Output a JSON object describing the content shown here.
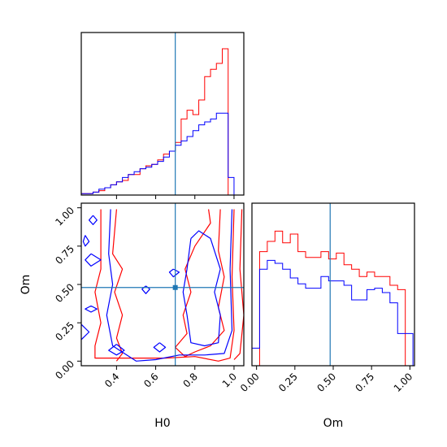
{
  "colors": {
    "red": "#ff0000",
    "blue": "#0000ff",
    "truth": "#1f77b4",
    "axes": "#000000"
  },
  "chart_data": {
    "type": "corner",
    "parameters": [
      "H0",
      "Om"
    ],
    "truths": {
      "H0": 0.7,
      "Om": 0.48
    },
    "ranges": {
      "H0": [
        0.22,
        1.05
      ],
      "Om": [
        -0.03,
        1.03
      ]
    },
    "hist_H0": {
      "type": "step-histogram",
      "x": [
        0.22,
        0.25,
        0.28,
        0.31,
        0.34,
        0.37,
        0.4,
        0.43,
        0.46,
        0.49,
        0.52,
        0.55,
        0.58,
        0.61,
        0.64,
        0.67,
        0.7,
        0.73,
        0.76,
        0.79,
        0.82,
        0.85,
        0.88,
        0.91,
        0.94,
        0.97,
        1.0
      ],
      "series": [
        {
          "color": "red",
          "values": [
            0.01,
            0.01,
            0.02,
            0.03,
            0.05,
            0.07,
            0.09,
            0.1,
            0.14,
            0.14,
            0.18,
            0.2,
            0.21,
            0.24,
            0.28,
            0.3,
            0.36,
            0.52,
            0.58,
            0.55,
            0.65,
            0.81,
            0.86,
            0.9,
            1.0,
            0.0
          ]
        },
        {
          "color": "blue",
          "values": [
            0.01,
            0.01,
            0.02,
            0.04,
            0.05,
            0.07,
            0.09,
            0.12,
            0.14,
            0.16,
            0.18,
            0.19,
            0.21,
            0.23,
            0.26,
            0.3,
            0.34,
            0.37,
            0.4,
            0.44,
            0.48,
            0.5,
            0.52,
            0.56,
            0.56,
            0.12
          ]
        }
      ]
    },
    "hist_Om": {
      "type": "step-histogram",
      "x": [
        -0.03,
        0.02,
        0.07,
        0.12,
        0.17,
        0.22,
        0.27,
        0.32,
        0.37,
        0.42,
        0.47,
        0.52,
        0.57,
        0.62,
        0.67,
        0.72,
        0.77,
        0.82,
        0.87,
        0.92,
        0.97,
        1.02
      ],
      "series": [
        {
          "color": "red",
          "values": [
            0.0,
            0.78,
            0.85,
            0.92,
            0.84,
            0.9,
            0.78,
            0.74,
            0.74,
            0.78,
            0.73,
            0.77,
            0.69,
            0.66,
            0.61,
            0.64,
            0.61,
            0.61,
            0.55,
            0.52,
            0.0
          ]
        },
        {
          "color": "blue",
          "values": [
            0.12,
            0.66,
            0.72,
            0.7,
            0.66,
            0.6,
            0.56,
            0.53,
            0.53,
            0.61,
            0.58,
            0.58,
            0.55,
            0.45,
            0.45,
            0.52,
            0.53,
            0.5,
            0.43,
            0.22,
            0.22
          ]
        }
      ]
    },
    "contours": {
      "type": "contour",
      "series": [
        {
          "color": "red",
          "paths": [
            [
              [
                0.32,
                0.99
              ],
              [
                0.32,
                0.6
              ],
              [
                0.29,
                0.45
              ],
              [
                0.32,
                0.25
              ],
              [
                0.29,
                0.1
              ],
              [
                0.29,
                0.02
              ],
              [
                0.45,
                0.02
              ],
              [
                0.65,
                0.02
              ],
              [
                0.8,
                0.03
              ],
              [
                0.92,
                0.0
              ],
              [
                0.98,
                0.02
              ],
              [
                1.0,
                0.2
              ],
              [
                0.99,
                0.55
              ],
              [
                1.0,
                0.99
              ]
            ],
            [
              [
                0.4,
                0.99
              ],
              [
                0.38,
                0.7
              ],
              [
                0.43,
                0.6
              ],
              [
                0.39,
                0.45
              ],
              [
                0.43,
                0.3
              ],
              [
                0.4,
                0.15
              ],
              [
                0.43,
                0.05
              ],
              [
                0.4,
                0.0
              ]
            ],
            [
              [
                0.93,
                0.99
              ],
              [
                0.92,
                0.72
              ],
              [
                0.95,
                0.55
              ],
              [
                0.92,
                0.35
              ],
              [
                0.95,
                0.2
              ],
              [
                0.88,
                0.1
              ],
              [
                0.8,
                0.06
              ],
              [
                0.75,
                0.03
              ],
              [
                0.7,
                0.09
              ],
              [
                0.76,
                0.18
              ],
              [
                0.74,
                0.3
              ],
              [
                0.78,
                0.45
              ],
              [
                0.75,
                0.6
              ],
              [
                0.8,
                0.75
              ],
              [
                0.88,
                0.9
              ],
              [
                0.87,
                0.99
              ]
            ],
            [
              [
                1.04,
                0.99
              ],
              [
                1.03,
                0.6
              ],
              [
                1.05,
                0.3
              ],
              [
                1.03,
                0.05
              ],
              [
                1.0,
                0.01
              ]
            ]
          ]
        },
        {
          "color": "blue",
          "paths": [
            [
              [
                0.37,
                0.99
              ],
              [
                0.36,
                0.7
              ],
              [
                0.38,
                0.5
              ],
              [
                0.35,
                0.3
              ],
              [
                0.38,
                0.1
              ],
              [
                0.44,
                0.05
              ],
              [
                0.5,
                0.0
              ],
              [
                0.6,
                0.01
              ],
              [
                0.72,
                0.04
              ],
              [
                0.85,
                0.04
              ],
              [
                0.95,
                0.05
              ],
              [
                0.99,
                0.2
              ],
              [
                0.98,
                0.6
              ],
              [
                0.99,
                0.99
              ]
            ],
            [
              [
                0.78,
                0.8
              ],
              [
                0.76,
                0.6
              ],
              [
                0.74,
                0.45
              ],
              [
                0.76,
                0.3
              ],
              [
                0.78,
                0.12
              ],
              [
                0.85,
                0.1
              ],
              [
                0.92,
                0.12
              ],
              [
                0.93,
                0.3
              ],
              [
                0.9,
                0.45
              ],
              [
                0.93,
                0.6
              ],
              [
                0.88,
                0.8
              ],
              [
                0.82,
                0.85
              ],
              [
                0.78,
                0.8
              ]
            ],
            [
              [
                0.28,
                0.95
              ],
              [
                0.3,
                0.92
              ],
              [
                0.28,
                0.89
              ],
              [
                0.26,
                0.92
              ],
              [
                0.28,
                0.95
              ]
            ],
            [
              [
                0.24,
                0.82
              ],
              [
                0.26,
                0.78
              ],
              [
                0.24,
                0.75
              ],
              [
                0.23,
                0.78
              ],
              [
                0.24,
                0.82
              ]
            ],
            [
              [
                0.27,
                0.7
              ],
              [
                0.32,
                0.66
              ],
              [
                0.27,
                0.62
              ],
              [
                0.24,
                0.66
              ],
              [
                0.27,
                0.7
              ]
            ],
            [
              [
                0.27,
                0.36
              ],
              [
                0.3,
                0.34
              ],
              [
                0.27,
                0.32
              ],
              [
                0.24,
                0.34
              ],
              [
                0.27,
                0.36
              ]
            ],
            [
              [
                0.22,
                0.24
              ],
              [
                0.26,
                0.19
              ],
              [
                0.22,
                0.14
              ],
              [
                0.18,
                0.19
              ],
              [
                0.22,
                0.24
              ]
            ],
            [
              [
                0.4,
                0.11
              ],
              [
                0.44,
                0.07
              ],
              [
                0.4,
                0.04
              ],
              [
                0.36,
                0.07
              ],
              [
                0.4,
                0.11
              ]
            ],
            [
              [
                0.62,
                0.12
              ],
              [
                0.65,
                0.09
              ],
              [
                0.62,
                0.06
              ],
              [
                0.59,
                0.09
              ],
              [
                0.62,
                0.12
              ]
            ],
            [
              [
                0.69,
                0.6
              ],
              [
                0.72,
                0.58
              ],
              [
                0.69,
                0.55
              ],
              [
                0.67,
                0.58
              ],
              [
                0.69,
                0.6
              ]
            ],
            [
              [
                0.55,
                0.49
              ],
              [
                0.57,
                0.47
              ],
              [
                0.55,
                0.44
              ],
              [
                0.53,
                0.47
              ],
              [
                0.55,
                0.49
              ]
            ]
          ]
        }
      ]
    },
    "axes": {
      "H0": {
        "label": "H0",
        "ticks": [
          0.4,
          0.6,
          0.8,
          1.0
        ],
        "tick_labels": [
          "0.4",
          "0.6",
          "0.8",
          "1.0"
        ]
      },
      "Om": {
        "label": "Om",
        "ticks": [
          0.0,
          0.25,
          0.5,
          0.75,
          1.0
        ],
        "tick_labels": [
          "0.00",
          "0.25",
          "0.50",
          "0.75",
          "1.00"
        ]
      }
    }
  }
}
